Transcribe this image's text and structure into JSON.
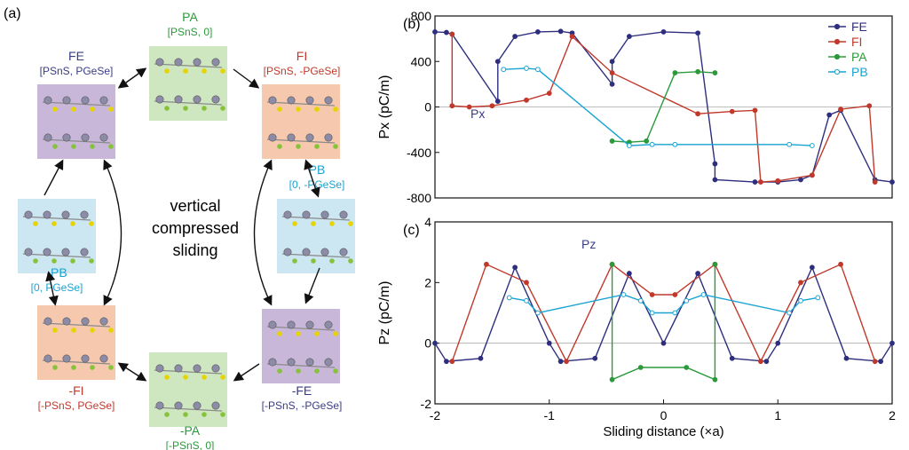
{
  "panel_a": {
    "label": "(a)",
    "center_text": [
      "vertical",
      "compressed",
      "sliding"
    ],
    "states": [
      {
        "id": "FE",
        "name": "FE",
        "sub_html": "[P<tspan baseline-shift=\"sub\" font-size=\"8\">SnS</tspan>, P<tspan baseline-shift=\"sub\" font-size=\"8\">GeSe</tspan>]",
        "color": "#3a3b86",
        "bg": "#c9b7d9"
      },
      {
        "id": "PA",
        "name": "PA",
        "sub": "[PSnS, 0]",
        "color": "#2a9a3a",
        "bg": "#cfe7c0"
      },
      {
        "id": "FI",
        "name": "FI",
        "sub": "[PSnS, -PGeSe]",
        "color": "#c0392b",
        "bg": "#f6c9ae"
      },
      {
        "id": "PB",
        "name": "PB",
        "sub": "[0, -PGeSe]",
        "color": "#19a3d1",
        "bg": "#cce6f2"
      },
      {
        "id": "-FE",
        "name": "-FE",
        "sub": "[-PSnS, -PGeSe]",
        "color": "#3a3b86",
        "bg": "#c9b7d9"
      },
      {
        "id": "-PA",
        "name": "-PA",
        "sub": "[-PSnS, 0]",
        "color": "#2a9a3a",
        "bg": "#cfe7c0"
      },
      {
        "id": "-FI",
        "name": "-FI",
        "sub": "[-PSnS, PGeSe]",
        "color": "#c0392b",
        "bg": "#f6c9ae"
      },
      {
        "id": "-PB",
        "name": "-PB",
        "sub": "[0, PGeSe]",
        "color": "#19a3d1",
        "bg": "#cce6f2"
      }
    ]
  },
  "chart_data": [
    {
      "type": "line",
      "panel_label": "(b)",
      "ylabel": "Px (pC/m)",
      "ylim": [
        -800,
        800
      ],
      "yticks": [
        -800,
        -400,
        0,
        400,
        800
      ],
      "xlim": [
        -2,
        2
      ],
      "legend": [
        "FE",
        "FI",
        "PA",
        "PB"
      ],
      "legend_placement": "top-right",
      "inset_label": "Px",
      "series": [
        {
          "name": "FE",
          "color": "#2e2e7e",
          "points": [
            [
              -2.0,
              660
            ],
            [
              -1.9,
              655
            ],
            [
              -1.85,
              640
            ],
            [
              -1.45,
              50
            ],
            [
              -1.45,
              400
            ],
            [
              -1.3,
              620
            ],
            [
              -1.1,
              660
            ],
            [
              -0.9,
              665
            ],
            [
              -0.8,
              650
            ],
            [
              -0.45,
              200
            ],
            [
              -0.45,
              400
            ],
            [
              -0.3,
              620
            ],
            [
              0,
              660
            ],
            [
              0.3,
              650
            ],
            [
              0.45,
              -500
            ],
            [
              0.45,
              -640
            ],
            [
              0.8,
              -660
            ],
            [
              1.0,
              -660
            ],
            [
              1.2,
              -640
            ],
            [
              1.3,
              -600
            ],
            [
              1.45,
              -70
            ],
            [
              1.55,
              -30
            ],
            [
              1.85,
              -640
            ],
            [
              2.0,
              -660
            ]
          ]
        },
        {
          "name": "FI",
          "color": "#c0392b",
          "points": [
            [
              -1.85,
              640
            ],
            [
              -1.85,
              10
            ],
            [
              -1.7,
              0
            ],
            [
              -1.5,
              10
            ],
            [
              -1.2,
              60
            ],
            [
              -1.0,
              120
            ],
            [
              -0.8,
              620
            ],
            [
              -0.45,
              300
            ],
            [
              0.3,
              -60
            ],
            [
              0.6,
              -40
            ],
            [
              0.8,
              -30
            ],
            [
              0.85,
              -660
            ],
            [
              1.0,
              -650
            ],
            [
              1.3,
              -600
            ],
            [
              1.55,
              -20
            ],
            [
              1.8,
              10
            ],
            [
              1.85,
              -660
            ]
          ]
        },
        {
          "name": "PA",
          "color": "#2a9a3a",
          "points": [
            [
              -0.45,
              -300
            ],
            [
              -0.3,
              -310
            ],
            [
              -0.15,
              -300
            ],
            [
              0.1,
              300
            ],
            [
              0.3,
              310
            ],
            [
              0.45,
              300
            ]
          ]
        },
        {
          "name": "PB",
          "color": "#19a3d1",
          "points": [
            [
              -1.4,
              330
            ],
            [
              -1.2,
              340
            ],
            [
              -1.1,
              330
            ],
            [
              -0.3,
              -340
            ],
            [
              -0.1,
              -330
            ],
            [
              0.1,
              -330
            ],
            [
              1.1,
              -330
            ],
            [
              1.3,
              -340
            ]
          ]
        }
      ]
    },
    {
      "type": "line",
      "panel_label": "(c)",
      "ylabel": "Pz (pC/m)",
      "ylim": [
        -2,
        4
      ],
      "yticks": [
        -2,
        0,
        2,
        4
      ],
      "xlim": [
        -2,
        2
      ],
      "xticks": [
        -2,
        -1,
        0,
        1,
        2
      ],
      "xlabel": "Sliding distance (×a)",
      "inset_label": "Pz",
      "series": [
        {
          "name": "FE",
          "color": "#2e2e7e",
          "points": [
            [
              -2.0,
              0.0
            ],
            [
              -1.9,
              -0.6
            ],
            [
              -1.6,
              -0.5
            ],
            [
              -1.3,
              2.5
            ],
            [
              -1.0,
              0.0
            ],
            [
              -0.9,
              -0.6
            ],
            [
              -0.6,
              -0.5
            ],
            [
              -0.3,
              2.3
            ],
            [
              0,
              0
            ],
            [
              0.3,
              2.3
            ],
            [
              0.6,
              -0.5
            ],
            [
              0.9,
              -0.6
            ],
            [
              1.0,
              0.0
            ],
            [
              1.3,
              2.5
            ],
            [
              1.6,
              -0.5
            ],
            [
              1.9,
              -0.6
            ],
            [
              2.0,
              0.0
            ]
          ]
        },
        {
          "name": "FI",
          "color": "#c0392b",
          "points": [
            [
              -1.85,
              -0.6
            ],
            [
              -1.55,
              2.6
            ],
            [
              -1.2,
              2.0
            ],
            [
              -0.85,
              -0.6
            ],
            [
              -0.45,
              2.6
            ],
            [
              -0.1,
              1.6
            ],
            [
              0.1,
              1.6
            ],
            [
              0.45,
              2.6
            ],
            [
              0.85,
              -0.6
            ],
            [
              1.2,
              2.0
            ],
            [
              1.55,
              2.6
            ],
            [
              1.85,
              -0.6
            ]
          ]
        },
        {
          "name": "PA",
          "color": "#2a9a3a",
          "points": [
            [
              -0.45,
              2.6
            ],
            [
              -0.45,
              -1.2
            ],
            [
              -0.2,
              -0.8
            ],
            [
              0.2,
              -0.8
            ],
            [
              0.45,
              -1.2
            ],
            [
              0.45,
              2.6
            ]
          ]
        },
        {
          "name": "PB",
          "color": "#19a3d1",
          "points": [
            [
              -1.35,
              1.5
            ],
            [
              -1.2,
              1.4
            ],
            [
              -1.1,
              1.0
            ],
            [
              -0.35,
              1.6
            ],
            [
              -0.2,
              1.4
            ],
            [
              -0.1,
              1.0
            ],
            [
              0.1,
              1.0
            ],
            [
              0.2,
              1.4
            ],
            [
              0.35,
              1.6
            ],
            [
              1.1,
              1.0
            ],
            [
              1.2,
              1.4
            ],
            [
              1.35,
              1.5
            ]
          ]
        }
      ]
    }
  ]
}
